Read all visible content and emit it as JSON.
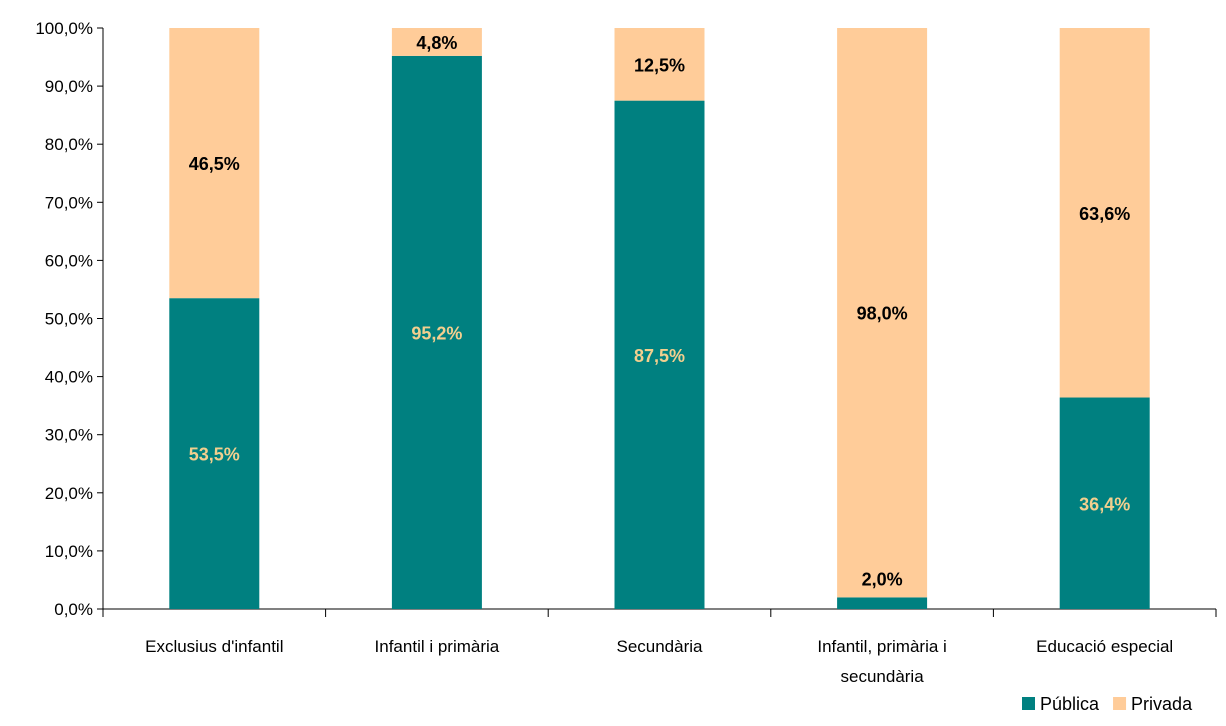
{
  "chart_data": {
    "type": "bar",
    "stacked": true,
    "categories": [
      [
        "Exclusius d'infantil"
      ],
      [
        "Infantil i primària"
      ],
      [
        "Secundària"
      ],
      [
        "Infantil, primària i",
        "secundària"
      ],
      [
        "Educació especial"
      ]
    ],
    "series": [
      {
        "name": "Pública",
        "values": [
          53.5,
          95.2,
          87.5,
          2.0,
          36.4
        ],
        "labels": [
          "53,5%",
          "95,2%",
          "87,5%",
          "2,0%",
          "36,4%"
        ],
        "color": "#008080",
        "label_color": "#F2CF8E"
      },
      {
        "name": "Privada",
        "values": [
          46.5,
          4.8,
          12.5,
          98.0,
          63.6
        ],
        "labels": [
          "46,5%",
          "4,8%",
          "12,5%",
          "98,0%",
          "63,6%"
        ],
        "color": "#FFCC99",
        "label_color": "#000000"
      }
    ],
    "ylim": [
      0,
      100
    ],
    "y_ticks": [
      "0,0%",
      "10,0%",
      "20,0%",
      "30,0%",
      "40,0%",
      "50,0%",
      "60,0%",
      "70,0%",
      "80,0%",
      "90,0%",
      "100,0%"
    ],
    "grid": false,
    "legend_position": "bottom-right",
    "title": "",
    "xlabel": "",
    "ylabel": ""
  }
}
